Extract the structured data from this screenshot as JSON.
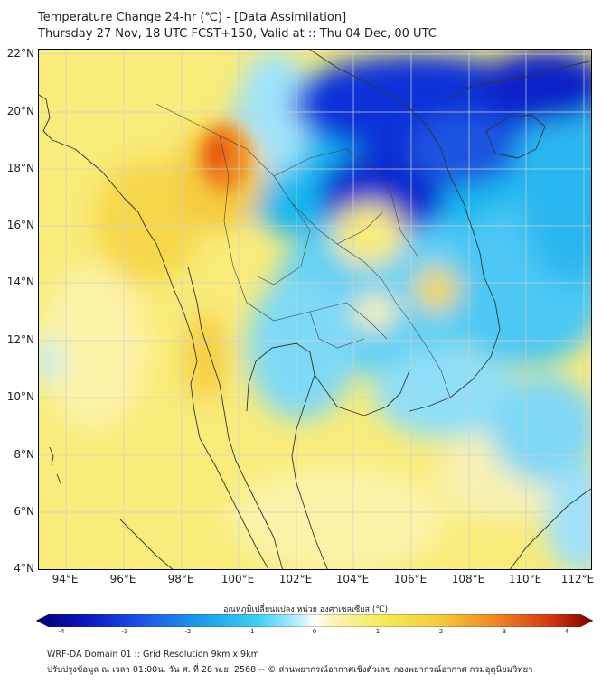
{
  "header": {
    "title": "Temperature Change 24-hr (℃) - [Data Assimilation]",
    "subtitle": "Thursday 27 Nov, 18 UTC FCST+150, Valid at :: Thu 04 Dec, 00 UTC"
  },
  "map": {
    "lat_labels": [
      "22°N",
      "20°N",
      "18°N",
      "16°N",
      "14°N",
      "12°N",
      "10°N",
      "8°N",
      "6°N",
      "4°N"
    ],
    "lon_labels": [
      "94°E",
      "96°E",
      "98°E",
      "100°E",
      "102°E",
      "104°E",
      "106°E",
      "108°E",
      "110°E",
      "112°E"
    ],
    "colors": {
      "strong_cool": "#0a1fd0",
      "cool": "#18b8f0",
      "light_cool": "#9fe4fb",
      "warm": "#f5e445",
      "light_warm": "#fbf3a0",
      "hot": "#f07a1a",
      "coast": "#333333",
      "grid": "#cfcfcf"
    }
  },
  "colorbar": {
    "title": "อุณหภูมิเปลี่ยนแปลง หน่วย องศาเซลเซียส (℃)",
    "ticks": [
      "-4",
      "-3",
      "-2",
      "-1",
      "0",
      "1",
      "2",
      "3",
      "4"
    ]
  },
  "footer": {
    "line1": "WRF-DA Domain 01 :: Grid Resolution 9km x 9km",
    "line2": "ปรับปรุงข้อมูล ณ เวลา 01:00น. วัน ศ. ที่ 28 พ.ย. 2568 -- © ส่วนพยากรณ์อากาศเชิงตัวเลข กองพยากรณ์อากาศ กรมอุตุนิยมวิทยา"
  }
}
